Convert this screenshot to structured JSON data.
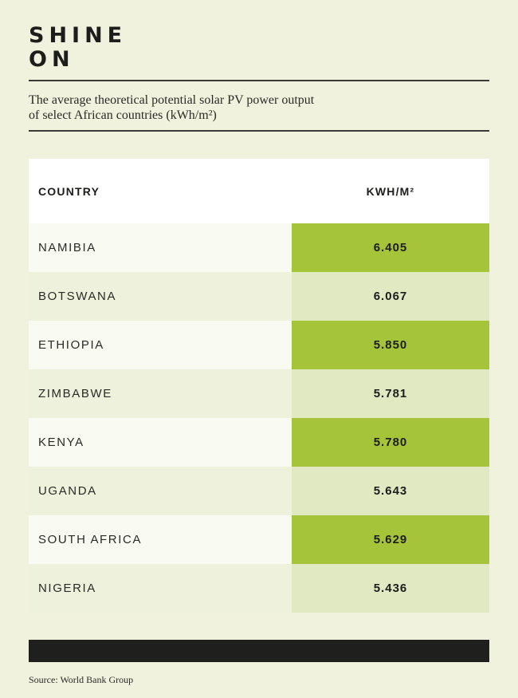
{
  "title_lines": [
    "SHINE",
    "ON"
  ],
  "subtitle_lines": [
    "The average theoretical potential solar PV power output",
    "of select African countries (kWh/m²)"
  ],
  "source": "Source: World Bank Group",
  "colors": {
    "background": "#f0f2dd",
    "highlight": "#a6c43a",
    "pale_value": "#e1e9c3",
    "dark_bar": "#1f1f1d"
  },
  "chart_data": {
    "type": "table",
    "title": "SHINE ON",
    "subtitle": "The average theoretical potential solar PV power output of select African countries (kWh/m²)",
    "columns": [
      "COUNTRY",
      "KWH/M²"
    ],
    "rows": [
      {
        "country": "NAMIBIA",
        "value": "6.405"
      },
      {
        "country": "BOTSWANA",
        "value": "6.067"
      },
      {
        "country": "ETHIOPIA",
        "value": "5.850"
      },
      {
        "country": "ZIMBABWE",
        "value": "5.781"
      },
      {
        "country": "KENYA",
        "value": "5.780"
      },
      {
        "country": "UGANDA",
        "value": "5.643"
      },
      {
        "country": "SOUTH AFRICA",
        "value": "5.629"
      },
      {
        "country": "NIGERIA",
        "value": "5.436"
      }
    ]
  }
}
